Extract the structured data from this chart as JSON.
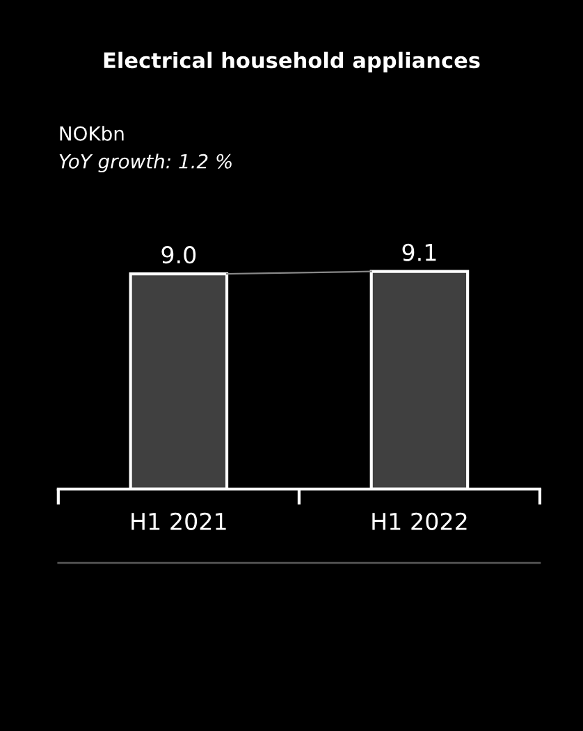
{
  "chart_data": {
    "type": "bar",
    "title": "Electrical household appliances",
    "subtitle": "NOKbn",
    "annotations": [
      "YoY growth: 1.2 %"
    ],
    "categories": [
      "H1 2021",
      "H1 2022"
    ],
    "values": [
      9.0,
      9.1
    ],
    "color": "#404040",
    "value_labels": [
      "9.0",
      "9.1"
    ],
    "tick_labels": "x",
    "grid": false,
    "legend": false
  }
}
